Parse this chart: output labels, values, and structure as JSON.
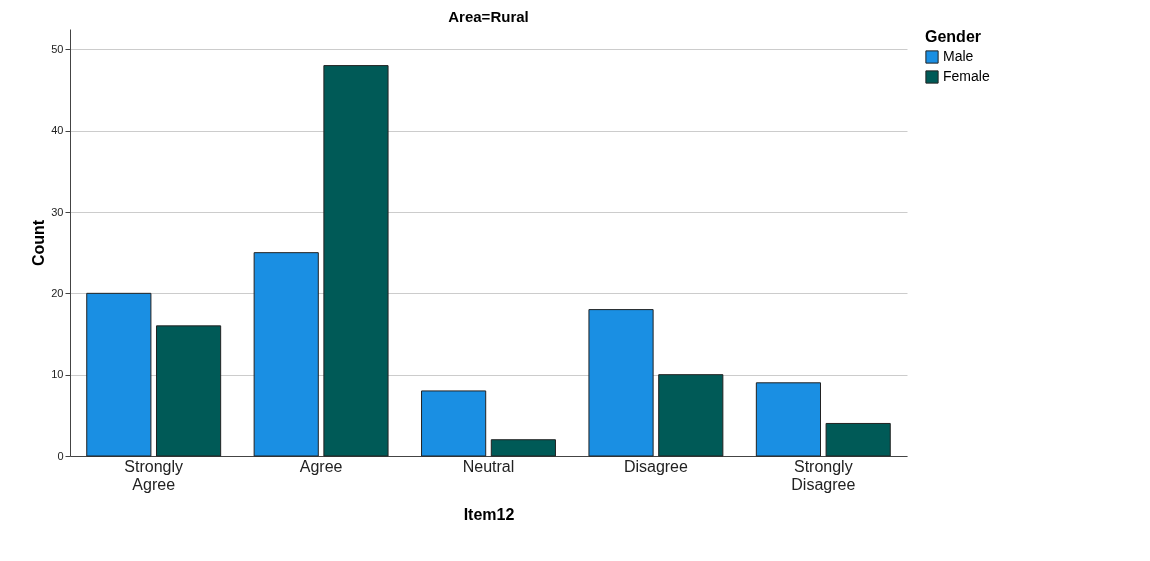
{
  "chart_data": {
    "type": "bar",
    "title": "Area=Rural",
    "xlabel": "Item12",
    "ylabel": "Count",
    "legend_title": "Gender",
    "categories": [
      "Strongly Agree",
      "Agree",
      "Neutral",
      "Disagree",
      "Strongly Disagree"
    ],
    "series": [
      {
        "name": "Male",
        "color": "#1a8fe3",
        "values": [
          20,
          25,
          8,
          18,
          9
        ]
      },
      {
        "name": "Female",
        "color": "#005a57",
        "values": [
          16,
          48,
          2,
          10,
          4
        ]
      }
    ],
    "ylim": [
      0,
      52.5
    ],
    "yticks": [
      0,
      10,
      20,
      30,
      40,
      50
    ],
    "grid": "y",
    "legend": "top right"
  }
}
